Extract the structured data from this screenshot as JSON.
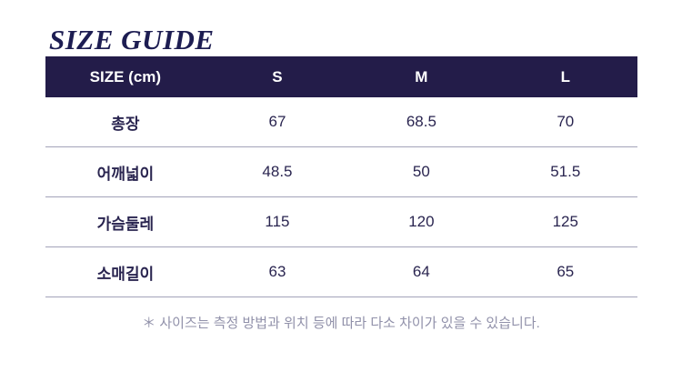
{
  "page": {
    "title": "SIZE GUIDE",
    "note": "＊ 사이즈는 측정 방법과 위치 등에 따라 다소 차이가 있을 수 있습니다."
  },
  "table": {
    "columns": [
      "SIZE (cm)",
      "S",
      "M",
      "L"
    ],
    "rows": [
      {
        "label": "총장",
        "values": [
          "67",
          "68.5",
          "70"
        ]
      },
      {
        "label": "어깨넓이",
        "values": [
          "48.5",
          "50",
          "51.5"
        ]
      },
      {
        "label": "가슴둘레",
        "values": [
          "115",
          "120",
          "125"
        ]
      },
      {
        "label": "소매길이",
        "values": [
          "63",
          "64",
          "65"
        ]
      }
    ]
  },
  "colors": {
    "header_bg": "#231c49",
    "header_text": "#ffffff",
    "body_text": "#2a2550",
    "title_text": "#1d1d52",
    "note_text": "#9191aa",
    "divider": "#a3a3ba"
  }
}
